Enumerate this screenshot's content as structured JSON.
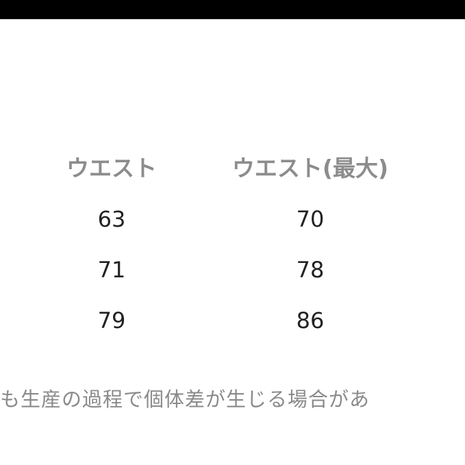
{
  "table": {
    "header": [
      "ウエスト",
      "ウエスト(最大)"
    ],
    "rows": [
      [
        63,
        70
      ],
      [
        71,
        78
      ],
      [
        79,
        86
      ]
    ]
  },
  "note": "も生産の過程で個体差が生じる場合があ"
}
